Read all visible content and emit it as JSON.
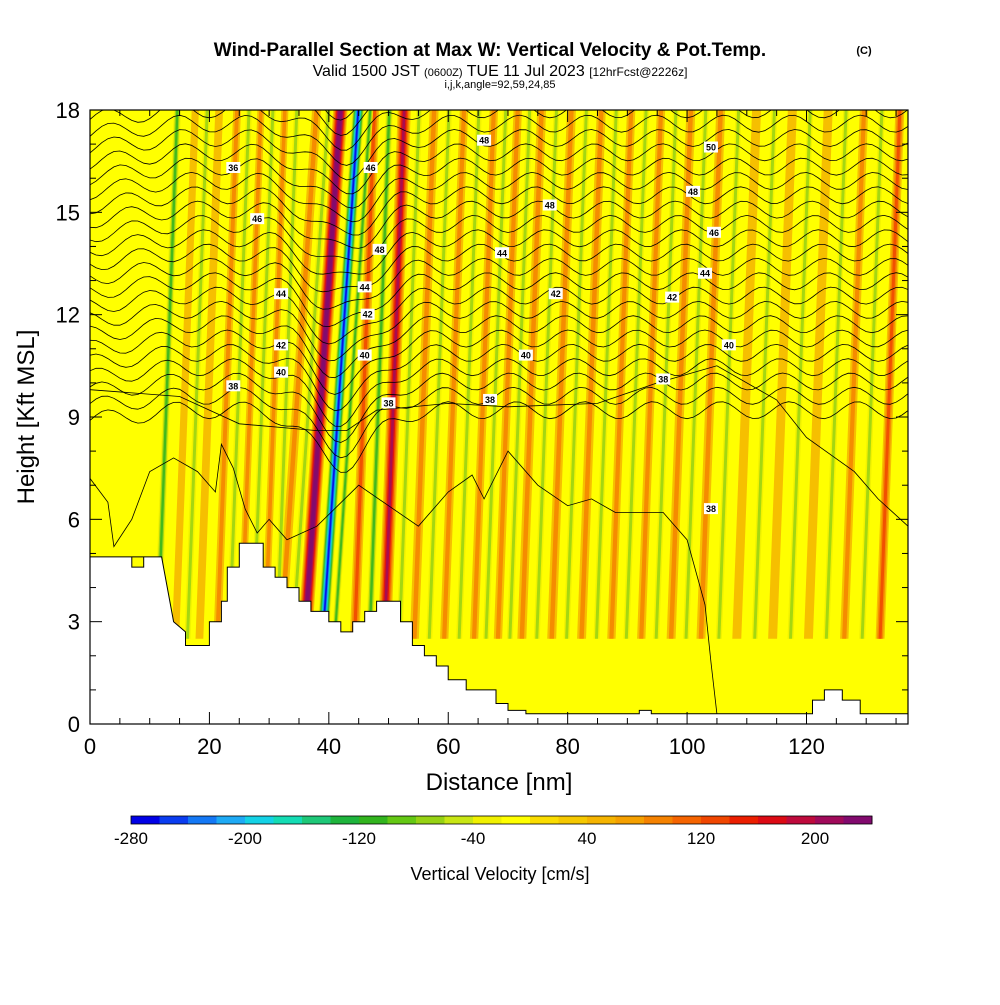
{
  "title": {
    "main": "Wind-Parallel Section at Max W: Vertical Velocity & Pot.Temp.",
    "mark": "(C)",
    "subtitle_a": "Valid 1500 JST",
    "subtitle_b": "(0600Z)",
    "subtitle_c": "TUE 11 Jul 2023",
    "subtitle_d": "[12hrFcst@2226z]",
    "params": "i,j,k,angle=92,59,24,85"
  },
  "chart_data": {
    "type": "heatmap",
    "xlabel": "Distance [nm]",
    "ylabel": "Height [Kft MSL]",
    "xlim": [
      0,
      137
    ],
    "ylim": [
      0,
      18
    ],
    "x_ticks": [
      0,
      20,
      40,
      60,
      80,
      100,
      120
    ],
    "y_ticks": [
      0,
      3,
      6,
      9,
      12,
      15,
      18
    ],
    "colorbar": {
      "label": "Vertical Velocity [cm/s]",
      "min": -280,
      "max": 240,
      "step": 20,
      "tick_values": [
        -280,
        -200,
        -120,
        -40,
        40,
        120,
        200
      ],
      "colors": [
        "#0000e6",
        "#0a3cf0",
        "#1478f5",
        "#1eaaf5",
        "#14d2e6",
        "#14dcb4",
        "#1ec878",
        "#1eb43c",
        "#32b41e",
        "#64c814",
        "#96d214",
        "#c8e614",
        "#f0f000",
        "#ffff00",
        "#fadc00",
        "#f5c800",
        "#f5b400",
        "#f5a000",
        "#f58200",
        "#f56400",
        "#f04600",
        "#eb1e00",
        "#dc0a14",
        "#be0a3c",
        "#a00a5a",
        "#820a6e"
      ]
    },
    "terrain_profile": {
      "x": [
        0,
        11,
        11,
        7,
        7,
        9,
        9,
        12,
        12,
        14,
        14,
        16,
        16,
        20,
        20,
        22,
        22,
        23,
        23,
        25,
        25,
        29,
        29,
        31,
        31,
        33,
        33,
        35,
        35,
        37,
        37,
        40,
        40,
        42,
        42,
        44,
        44,
        46,
        46,
        48,
        48,
        52,
        52,
        54,
        54,
        56,
        56,
        58,
        58,
        60,
        60,
        63,
        63,
        68,
        68,
        70,
        70,
        73,
        73,
        92,
        92,
        94,
        94,
        97,
        97,
        121,
        121,
        123,
        123,
        126,
        126,
        129,
        129,
        137
      ],
      "y": [
        4.9,
        4.9,
        4.9,
        4.9,
        4.6,
        4.6,
        4.9,
        4.9,
        4.9,
        3.0,
        3.0,
        2.7,
        2.3,
        2.3,
        3.0,
        3.0,
        3.6,
        3.6,
        4.6,
        4.6,
        5.3,
        5.3,
        4.6,
        4.6,
        4.3,
        4.3,
        4.0,
        4.0,
        3.6,
        3.6,
        3.3,
        3.3,
        3.0,
        3.0,
        2.7,
        2.7,
        3.0,
        3.0,
        3.3,
        3.3,
        3.6,
        3.6,
        3.0,
        3.0,
        2.3,
        2.3,
        2.0,
        2.0,
        1.7,
        1.7,
        1.3,
        1.3,
        1.0,
        1.0,
        0.6,
        0.6,
        0.4,
        0.4,
        0.3,
        0.3,
        0.4,
        0.4,
        0.3,
        0.3,
        0.3,
        0.3,
        0.7,
        0.7,
        1.0,
        1.0,
        0.7,
        0.7,
        0.3,
        0.3
      ]
    },
    "updraft_columns": [
      {
        "x": 39,
        "w": 280,
        "width": 2.4
      },
      {
        "x": 51,
        "w": 180,
        "width": 2.2
      },
      {
        "x": 46,
        "w": 120,
        "width": 1.6
      },
      {
        "x": 35,
        "w": 90,
        "width": 1.5
      },
      {
        "x": 31,
        "w": 60,
        "width": 1.2
      },
      {
        "x": 27,
        "w": 60,
        "width": 1.2
      },
      {
        "x": 23,
        "w": 80,
        "width": 1.3
      },
      {
        "x": 20,
        "w": 50,
        "width": 1.3
      },
      {
        "x": 16,
        "w": 40,
        "width": 1.2
      },
      {
        "x": 56,
        "w": 80,
        "width": 1.5
      },
      {
        "x": 61,
        "w": 60,
        "width": 1.4
      },
      {
        "x": 66,
        "w": 70,
        "width": 1.4
      },
      {
        "x": 70,
        "w": 60,
        "width": 1.4
      },
      {
        "x": 74,
        "w": 70,
        "width": 1.5
      },
      {
        "x": 79,
        "w": 60,
        "width": 1.5
      },
      {
        "x": 84,
        "w": 70,
        "width": 1.5
      },
      {
        "x": 89,
        "w": 60,
        "width": 1.4
      },
      {
        "x": 94,
        "w": 60,
        "width": 1.4
      },
      {
        "x": 99,
        "w": 60,
        "width": 1.5
      },
      {
        "x": 104,
        "w": 60,
        "width": 1.5
      },
      {
        "x": 110,
        "w": 50,
        "width": 1.5
      },
      {
        "x": 116,
        "w": 50,
        "width": 1.5
      },
      {
        "x": 122,
        "w": 40,
        "width": 1.5
      },
      {
        "x": 128,
        "w": 60,
        "width": 1.4
      },
      {
        "x": 134,
        "w": 100,
        "width": 1.5
      }
    ],
    "downdraft_columns": [
      {
        "x": 42,
        "w": -280,
        "width": 2.0
      },
      {
        "x": 48.5,
        "w": -120,
        "width": 1.2
      },
      {
        "x": 44,
        "w": -100,
        "width": 1.0
      },
      {
        "x": 37,
        "w": -80,
        "width": 1.0
      },
      {
        "x": 33,
        "w": -80,
        "width": 1.0
      },
      {
        "x": 29,
        "w": -60,
        "width": 1.0
      },
      {
        "x": 25,
        "w": -60,
        "width": 1.0
      },
      {
        "x": 18,
        "w": -60,
        "width": 1.0
      },
      {
        "x": 13,
        "w": -100,
        "width": 1.2
      },
      {
        "x": 53.5,
        "w": -80,
        "width": 1.0
      },
      {
        "x": 58.5,
        "w": -60,
        "width": 1.0
      },
      {
        "x": 63.5,
        "w": -60,
        "width": 1.0
      },
      {
        "x": 68,
        "w": -60,
        "width": 1.0
      },
      {
        "x": 72,
        "w": -60,
        "width": 1.0
      },
      {
        "x": 76.5,
        "w": -70,
        "width": 1.0
      },
      {
        "x": 81.5,
        "w": -60,
        "width": 1.0
      },
      {
        "x": 86.5,
        "w": -60,
        "width": 1.0
      },
      {
        "x": 91.5,
        "w": -60,
        "width": 1.0
      },
      {
        "x": 96.5,
        "w": -60,
        "width": 1.0
      },
      {
        "x": 101.5,
        "w": -60,
        "width": 1.0
      },
      {
        "x": 107,
        "w": -70,
        "width": 1.0
      },
      {
        "x": 113,
        "w": -60,
        "width": 1.0
      },
      {
        "x": 119,
        "w": -60,
        "width": 1.0
      },
      {
        "x": 125,
        "w": -60,
        "width": 1.0
      },
      {
        "x": 131,
        "w": -60,
        "width": 1.0
      }
    ],
    "potential_temperature_contours": {
      "levels_labeled": [
        36,
        38,
        40,
        42,
        44,
        46,
        48,
        50
      ],
      "labels": [
        {
          "text": "36",
          "x": 24,
          "y": 16.3
        },
        {
          "text": "46",
          "x": 47,
          "y": 16.3
        },
        {
          "text": "48",
          "x": 66,
          "y": 17.1
        },
        {
          "text": "50",
          "x": 104,
          "y": 16.9
        },
        {
          "text": "46",
          "x": 28,
          "y": 14.8
        },
        {
          "text": "48",
          "x": 77,
          "y": 15.2
        },
        {
          "text": "48",
          "x": 101,
          "y": 15.6
        },
        {
          "text": "46",
          "x": 104.5,
          "y": 14.4
        },
        {
          "text": "48",
          "x": 48.5,
          "y": 13.9
        },
        {
          "text": "44",
          "x": 69,
          "y": 13.8
        },
        {
          "text": "44",
          "x": 103,
          "y": 13.2
        },
        {
          "text": "44",
          "x": 46,
          "y": 12.8
        },
        {
          "text": "44",
          "x": 32,
          "y": 12.6
        },
        {
          "text": "42",
          "x": 78,
          "y": 12.6
        },
        {
          "text": "42",
          "x": 97.5,
          "y": 12.5
        },
        {
          "text": "42",
          "x": 46.5,
          "y": 12.0
        },
        {
          "text": "42",
          "x": 32,
          "y": 11.1
        },
        {
          "text": "40",
          "x": 107,
          "y": 11.1
        },
        {
          "text": "40",
          "x": 46,
          "y": 10.8
        },
        {
          "text": "40",
          "x": 73,
          "y": 10.8
        },
        {
          "text": "40",
          "x": 32,
          "y": 10.3
        },
        {
          "text": "38",
          "x": 24,
          "y": 9.9
        },
        {
          "text": "38",
          "x": 96,
          "y": 10.1
        },
        {
          "text": "38",
          "x": 50,
          "y": 9.4
        },
        {
          "text": "38",
          "x": 67,
          "y": 9.5
        },
        {
          "text": "38",
          "x": 104,
          "y": 6.3
        }
      ]
    }
  }
}
